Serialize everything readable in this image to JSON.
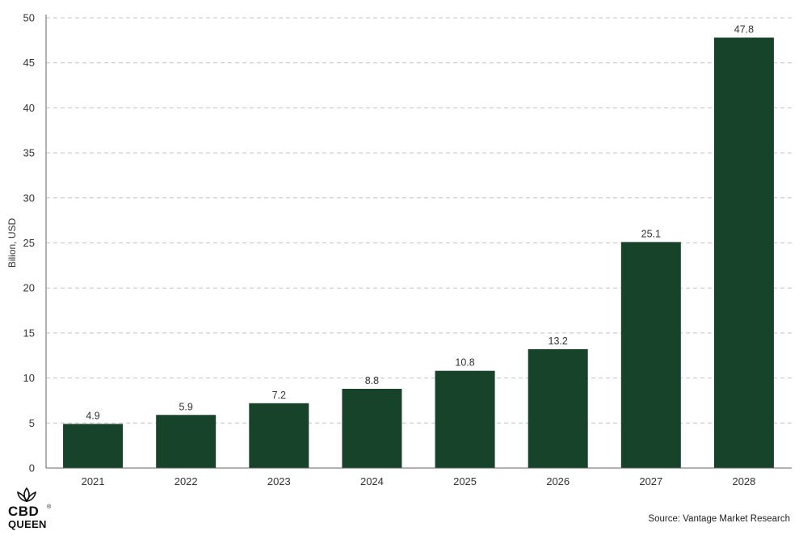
{
  "chart_data": {
    "type": "bar",
    "categories": [
      "2021",
      "2022",
      "2023",
      "2024",
      "2025",
      "2026",
      "2027",
      "2028"
    ],
    "values": [
      4.9,
      5.9,
      7.2,
      8.8,
      10.8,
      13.2,
      25.1,
      47.8
    ],
    "data_labels": [
      "4.9",
      "5.9",
      "7.2",
      "8.8",
      "10.8",
      "13.2",
      "25.1",
      "47.8"
    ],
    "ylabel": "Bilion, USD",
    "xlabel": "",
    "ylim": [
      0,
      50
    ],
    "yticks": [
      "0",
      "5",
      "10",
      "15",
      "20",
      "25",
      "30",
      "35",
      "40",
      "45",
      "50"
    ],
    "grid": true,
    "bar_color": "#17432a"
  },
  "source_text": "Source: Vantage Market Research",
  "logo": {
    "line1": "CBD",
    "line2": "QUEEN",
    "registered": "®"
  }
}
